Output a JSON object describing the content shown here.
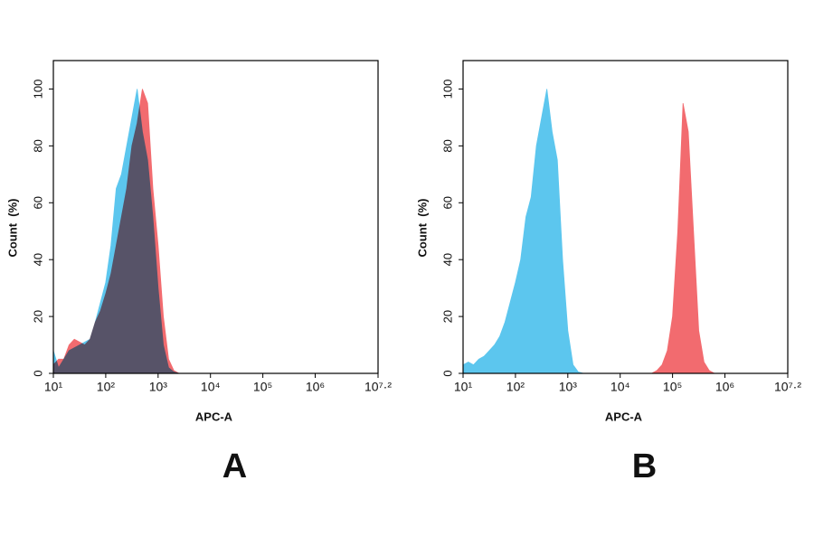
{
  "chart_data": [
    {
      "type": "area",
      "panel_label": "A",
      "xlabel": "APC-A",
      "ylabel": "Count  (%)",
      "xscale": "log",
      "xlim": [
        10,
        15848931.92
      ],
      "ylim": [
        0,
        110
      ],
      "xticks": [
        {
          "value": 10,
          "label": "10¹"
        },
        {
          "value": 100,
          "label": "10²"
        },
        {
          "value": 1000,
          "label": "10³"
        },
        {
          "value": 10000,
          "label": "10⁴"
        },
        {
          "value": 100000,
          "label": "10⁵"
        },
        {
          "value": 1000000,
          "label": "10⁶"
        },
        {
          "value": 15848931.92,
          "label": "10⁷·²"
        }
      ],
      "yticks": [
        0,
        20,
        40,
        60,
        80,
        100
      ],
      "x": [
        10,
        12.59,
        15.85,
        19.95,
        25.12,
        31.62,
        39.81,
        50.12,
        63.1,
        79.43,
        100,
        125.9,
        158.5,
        199.5,
        251.2,
        316.2,
        398.1,
        501.2,
        631,
        794.3,
        1000,
        1259,
        1585,
        1995,
        2512
      ],
      "series": [
        {
          "color": "#f26b6f",
          "values": [
            3,
            5,
            5,
            10,
            12,
            11,
            10,
            12,
            18,
            22,
            28,
            35,
            45,
            55,
            65,
            80,
            88,
            100,
            95,
            65,
            45,
            20,
            5,
            1,
            0
          ]
        },
        {
          "color": "#5cc6ee",
          "values": [
            8,
            2,
            5,
            8,
            9,
            10,
            11,
            12,
            18,
            25,
            32,
            45,
            65,
            70,
            80,
            90,
            100,
            85,
            75,
            55,
            30,
            10,
            2,
            0.5,
            0
          ]
        }
      ]
    },
    {
      "type": "area",
      "panel_label": "B",
      "xlabel": "APC-A",
      "ylabel": "Count  (%)",
      "xscale": "log",
      "xlim": [
        10,
        15848931.92
      ],
      "ylim": [
        0,
        110
      ],
      "xticks": [
        {
          "value": 10,
          "label": "10¹"
        },
        {
          "value": 100,
          "label": "10²"
        },
        {
          "value": 1000,
          "label": "10³"
        },
        {
          "value": 10000,
          "label": "10⁴"
        },
        {
          "value": 100000,
          "label": "10⁵"
        },
        {
          "value": 1000000,
          "label": "10⁶"
        },
        {
          "value": 15848931.92,
          "label": "10⁷·²"
        }
      ],
      "yticks": [
        0,
        20,
        40,
        60,
        80,
        100
      ],
      "x": [
        10,
        12.59,
        15.85,
        19.95,
        25.12,
        31.62,
        39.81,
        50.12,
        63.1,
        79.43,
        100,
        125.9,
        158.5,
        199.5,
        251.2,
        316.2,
        398.1,
        501.2,
        631,
        794.3,
        1000,
        1259,
        1585,
        1995,
        2512,
        3162,
        3981,
        5012,
        6310,
        7943,
        10000,
        12589,
        15849,
        19953,
        25119,
        31623,
        39811,
        50119,
        63096,
        79433,
        100000,
        125893,
        158489,
        199526,
        251189,
        316228,
        398107,
        501187,
        630957,
        794328,
        1000000
      ],
      "series": [
        {
          "color": "#5cc6ee",
          "values": [
            3,
            4,
            3,
            5,
            6,
            8,
            10,
            13,
            18,
            25,
            32,
            40,
            55,
            62,
            80,
            90,
            100,
            85,
            75,
            40,
            15,
            3,
            0.5,
            0,
            0,
            0,
            0,
            0,
            0,
            0,
            0,
            0,
            0,
            0,
            0,
            0,
            0,
            0,
            0,
            0,
            0,
            0,
            0,
            0,
            0,
            0,
            0,
            0,
            0,
            0,
            0
          ]
        },
        {
          "color": "#f26b6f",
          "values": [
            0,
            0,
            0,
            0,
            0,
            0,
            0,
            0,
            0,
            0,
            0,
            0,
            0,
            0,
            0,
            0,
            0,
            0,
            0,
            0,
            0,
            0,
            0,
            0,
            0,
            0,
            0,
            0,
            0,
            0,
            0,
            0,
            0,
            0,
            0,
            0,
            0,
            1,
            3,
            8,
            20,
            50,
            95,
            85,
            50,
            15,
            4,
            1,
            0,
            0,
            0
          ]
        }
      ]
    }
  ]
}
